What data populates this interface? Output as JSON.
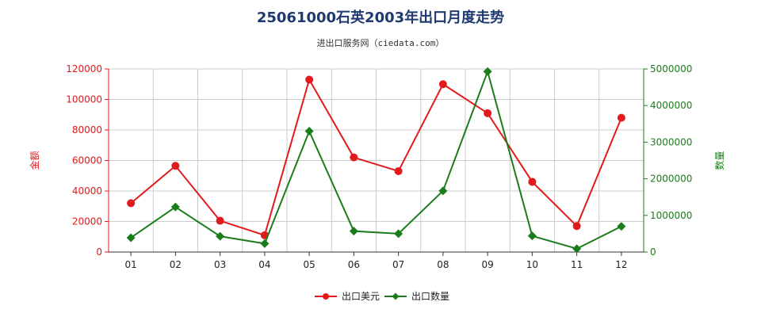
{
  "title": "25061000石英2003年出口月度走势",
  "subtitle": "进出口服务网（ciedata.com）",
  "colors": {
    "amount": "#e31a1c",
    "quantity": "#1a7d1a",
    "left_axis": "#e31a1c",
    "right_axis": "#1a7d1a",
    "grid": "#cccccc"
  },
  "chart_data": {
    "type": "line",
    "categories": [
      "01",
      "02",
      "03",
      "04",
      "05",
      "06",
      "07",
      "08",
      "09",
      "10",
      "11",
      "12"
    ],
    "y_left": {
      "label": "金额",
      "ylim": [
        0,
        120000
      ],
      "ticks": [
        "0",
        "20000",
        "40000",
        "60000",
        "80000",
        "100000",
        "120000"
      ]
    },
    "y_right": {
      "label": "数量",
      "ylim": [
        0,
        5000000
      ],
      "ticks": [
        "0",
        "1000000",
        "2000000",
        "3000000",
        "4000000",
        "5000000"
      ]
    },
    "series": [
      {
        "name": "出口美元",
        "axis": "left",
        "marker": "circle",
        "values": [
          32000,
          56500,
          20500,
          11000,
          113000,
          62000,
          53000,
          110000,
          91000,
          46000,
          17000,
          88000
        ]
      },
      {
        "name": "出口数量",
        "axis": "right",
        "marker": "diamond",
        "values": [
          390000,
          1230000,
          430000,
          230000,
          3300000,
          570000,
          500000,
          1670000,
          4930000,
          440000,
          90000,
          700000
        ]
      }
    ],
    "grid": true,
    "legend": "bottom-center"
  }
}
